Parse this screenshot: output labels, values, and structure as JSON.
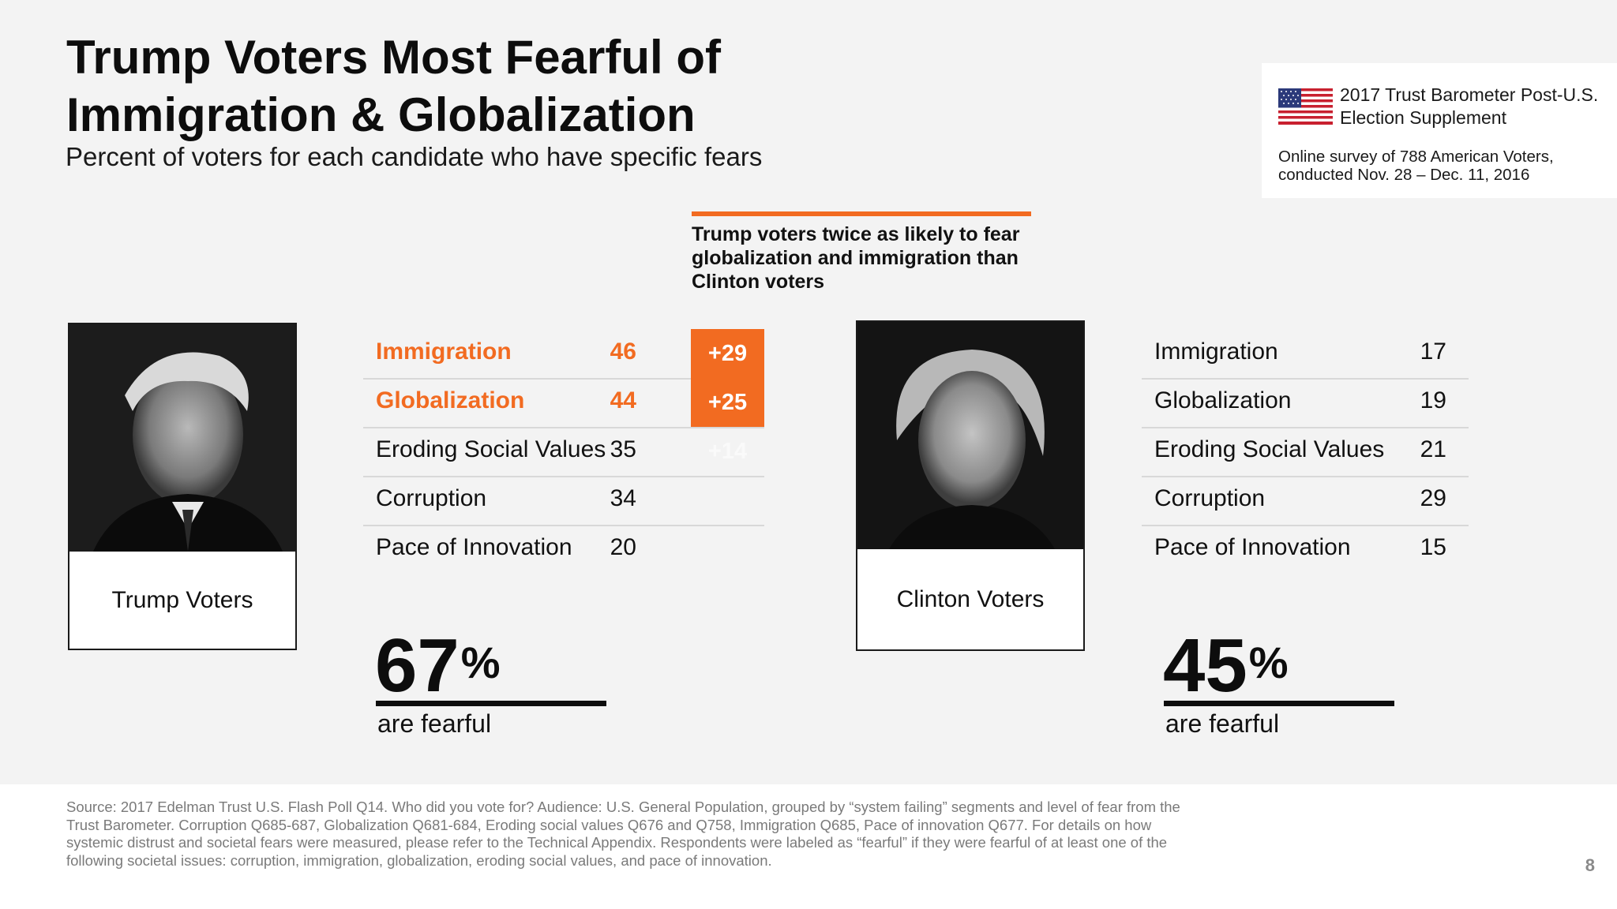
{
  "title": "Trump Voters Most Fearful of Immigration & Globalization",
  "subtitle": "Percent of voters for each candidate who have specific fears",
  "info_box": {
    "title": "2017 Trust Barometer Post-U.S. Election Supplement",
    "note": "Online survey of 788 American Voters, conducted Nov. 28 – Dec. 11, 2016",
    "flag_icon": "us-flag-icon"
  },
  "callout": "Trump voters twice as likely to fear globalization and immigration than Clinton voters",
  "colors": {
    "accent": "#f26b21",
    "text": "#111111",
    "background": "#f3f3f3"
  },
  "trump": {
    "caption": "Trump Voters",
    "fears": [
      {
        "label": "Immigration",
        "value": "46",
        "diff": "+29"
      },
      {
        "label": "Globalization",
        "value": "44",
        "diff": "+25"
      },
      {
        "label": "Eroding Social Values",
        "value": "35",
        "diff": "+14"
      },
      {
        "label": "Corruption",
        "value": "34"
      },
      {
        "label": "Pace of Innovation",
        "value": "20"
      }
    ],
    "percent": "67",
    "percent_sign": "%",
    "percent_label": "are fearful"
  },
  "clinton": {
    "caption": "Clinton Voters",
    "fears": [
      {
        "label": "Immigration",
        "value": "17"
      },
      {
        "label": "Globalization",
        "value": "19"
      },
      {
        "label": "Eroding Social Values",
        "value": "21"
      },
      {
        "label": "Corruption",
        "value": "29"
      },
      {
        "label": "Pace of Innovation",
        "value": "15"
      }
    ],
    "percent": "45",
    "percent_sign": "%",
    "percent_label": "are fearful"
  },
  "footer": {
    "source": "Source: 2017 Edelman Trust U.S. Flash Poll Q14. Who did you vote for? Audience: U.S. General Population, grouped by “system failing” segments and level of fear from the Trust Barometer. Corruption Q685-687, Globalization Q681-684, Eroding social values Q676 and Q758, Immigration  Q685, Pace of innovation Q677. For details on how systemic distrust and societal fears were measured, please refer to the Technical Appendix. Respondents were labeled as “fearful” if they were fearful of at least one of the following societal issues: corruption, immigration, globalization, eroding social values, and pace of innovation.",
    "page_number": "8"
  }
}
